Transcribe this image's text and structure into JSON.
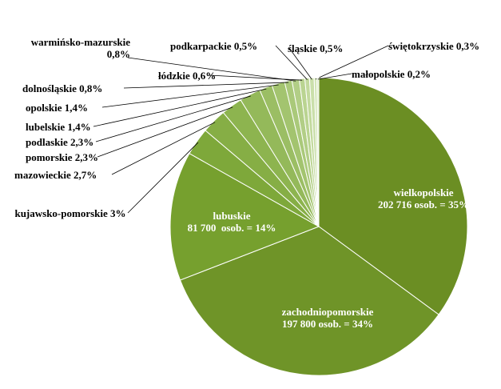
{
  "chart_data": {
    "type": "pie",
    "categories": [
      "wielkopolskie",
      "zachodniopomorskie",
      "lubuskie",
      "kujawsko-pomorskie",
      "mazowieckie",
      "pomorskie",
      "podlaskie",
      "lubelskie",
      "opolskie",
      "dolnośląskie",
      "warmińsko-mazurskie",
      "łódzkie",
      "podkarpackie",
      "śląskie",
      "świętokrzyskie",
      "małopolskie"
    ],
    "values": [
      35,
      34,
      14,
      3,
      2.7,
      2.3,
      2.3,
      1.4,
      1.4,
      0.8,
      0.8,
      0.6,
      0.5,
      0.5,
      0.3,
      0.2
    ],
    "value_labels": [
      "202 716 osob. = 35%",
      "197 800 osob. = 34%",
      "81 700  osob. = 14%",
      "3%",
      "2,7%",
      "2,3%",
      "2,3%",
      "1,4%",
      "1,4%",
      "0,8%",
      "0,8%",
      "0,6%",
      "0,5%",
      "0,5%",
      "0,3%",
      "0,2%"
    ],
    "colors": [
      "#6b8e23",
      "#6f9428",
      "#76a02e",
      "#7ea83a",
      "#86ae45",
      "#8db44f",
      "#94b95a",
      "#9bbe64",
      "#a3c46f",
      "#aac97a",
      "#b2ce86",
      "#bad491",
      "#c2d99d",
      "#cadfaa",
      "#d2e5b6",
      "#dbeac3"
    ]
  }
}
